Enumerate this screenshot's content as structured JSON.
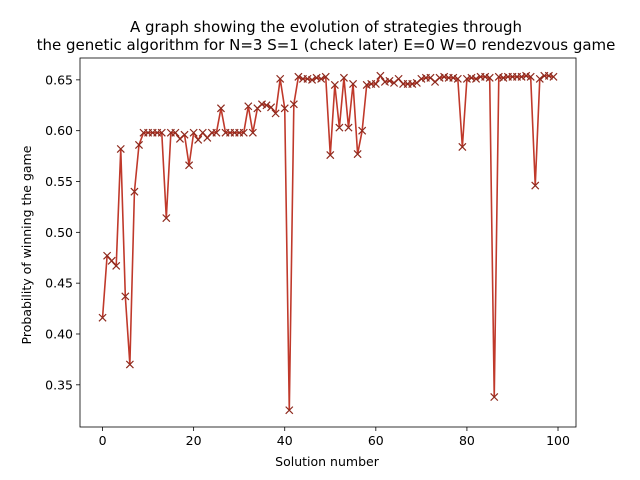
{
  "chart_data": {
    "type": "line",
    "title_line1": "A graph showing the evolution of strategies through",
    "title_line2": "the genetic algorithm for N=3 S=1 (check later) E=0 W=0 rendezvous game",
    "xlabel": "Solution number",
    "ylabel": "Probability of winning the game",
    "xlim": [
      -4.95,
      103.95
    ],
    "ylim": [
      0.3085,
      0.6715
    ],
    "xticks": [
      0,
      20,
      40,
      60,
      80,
      100
    ],
    "yticks": [
      0.35,
      0.4,
      0.45,
      0.5,
      0.55,
      0.6,
      0.65
    ],
    "xtick_labels": [
      "0",
      "20",
      "40",
      "60",
      "80",
      "100"
    ],
    "ytick_labels": [
      "0.35",
      "0.40",
      "0.45",
      "0.50",
      "0.55",
      "0.60",
      "0.65"
    ],
    "grid": false,
    "line_color": "#c0392b",
    "marker": "x",
    "marker_color": "#8e2a1e",
    "series": [
      {
        "x": [
          0,
          1,
          2,
          3,
          4,
          5,
          6,
          7,
          8,
          9,
          10,
          11,
          12,
          13,
          14,
          15,
          16,
          17,
          18,
          19,
          20,
          21,
          22,
          23,
          24,
          25,
          26,
          27,
          28,
          29,
          30,
          31,
          32,
          33,
          34,
          35,
          36,
          37,
          38,
          39,
          40,
          41,
          42,
          43,
          44,
          45,
          46,
          47,
          48,
          49,
          50,
          51,
          52,
          53,
          54,
          55,
          56,
          57,
          58,
          59,
          60,
          61,
          62,
          63,
          64,
          65,
          66,
          67,
          68,
          69,
          70,
          71,
          72,
          73,
          74,
          75,
          76,
          77,
          78,
          79,
          80,
          81,
          82,
          83,
          84,
          85,
          86,
          87,
          88,
          89,
          90,
          91,
          92,
          93,
          94,
          95,
          96,
          97,
          98,
          99
        ],
        "values": [
          0.416,
          0.477,
          0.472,
          0.467,
          0.582,
          0.437,
          0.37,
          0.54,
          0.586,
          0.598,
          0.598,
          0.598,
          0.598,
          0.598,
          0.514,
          0.598,
          0.598,
          0.592,
          0.596,
          0.566,
          0.598,
          0.591,
          0.598,
          0.593,
          0.598,
          0.598,
          0.622,
          0.598,
          0.598,
          0.598,
          0.598,
          0.598,
          0.624,
          0.598,
          0.622,
          0.626,
          0.625,
          0.623,
          0.617,
          0.651,
          0.622,
          0.325,
          0.626,
          0.653,
          0.651,
          0.651,
          0.65,
          0.652,
          0.651,
          0.653,
          0.576,
          0.645,
          0.603,
          0.652,
          0.603,
          0.646,
          0.577,
          0.6,
          0.645,
          0.646,
          0.646,
          0.654,
          0.648,
          0.649,
          0.647,
          0.651,
          0.646,
          0.646,
          0.646,
          0.647,
          0.651,
          0.652,
          0.652,
          0.648,
          0.652,
          0.653,
          0.652,
          0.652,
          0.651,
          0.584,
          0.651,
          0.652,
          0.651,
          0.653,
          0.653,
          0.652,
          0.338,
          0.653,
          0.652,
          0.653,
          0.653,
          0.653,
          0.653,
          0.654,
          0.653,
          0.546,
          0.651,
          0.654,
          0.654,
          0.653
        ]
      }
    ]
  }
}
